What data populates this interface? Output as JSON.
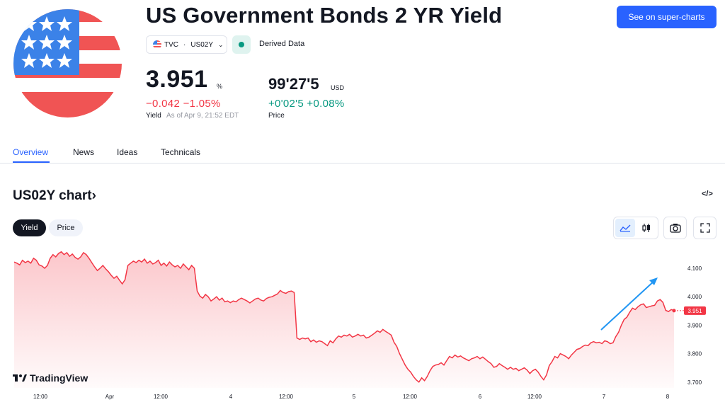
{
  "header": {
    "title": "US Government Bonds 2 YR Yield",
    "super_charts_label": "See on super-charts",
    "exchange": "TVC",
    "symbol": "US02Y",
    "derived_label": "Derived Data"
  },
  "quote": {
    "yield_value": "3.951",
    "yield_unit": "%",
    "yield_change": "−0.042 −1.05%",
    "yield_label": "Yield",
    "as_of": "As of Apr 9, 21:52 EDT",
    "price_value": "99'27'5",
    "price_unit": "USD",
    "price_change": "+0'02'5 +0.08%",
    "price_label": "Price"
  },
  "tabs": [
    {
      "label": "Overview",
      "active": true
    },
    {
      "label": "News",
      "active": false
    },
    {
      "label": "Ideas",
      "active": false
    },
    {
      "label": "Technicals",
      "active": false
    }
  ],
  "chart_section": {
    "title": "US02Y chart",
    "title_arrow": "›",
    "embed_icon_label": "</>",
    "toggle": [
      {
        "label": "Yield",
        "active": true
      },
      {
        "label": "Price",
        "active": false
      }
    ],
    "branding": "TradingView"
  },
  "colors": {
    "accent": "#2962ff",
    "line": "#f23645",
    "positive": "#089981",
    "negative": "#f23645",
    "arrow": "#2196f3"
  },
  "icons": [
    "us-flag-icon",
    "chevron-down-icon",
    "embed-code-icon",
    "area-chart-icon",
    "candles-icon",
    "camera-icon",
    "fullscreen-icon",
    "tradingview-logo-icon"
  ],
  "chart_data": {
    "type": "area",
    "x_tick_labels": [
      "12:00",
      "Apr",
      "12:00",
      "4",
      "12:00",
      "5",
      "12:00",
      "6",
      "12:00",
      "7",
      "8"
    ],
    "y_tick_labels": [
      "4.100",
      "4.000",
      "3.900",
      "3.800",
      "3.700"
    ],
    "ylim": [
      3.675,
      4.14
    ],
    "last_value": 3.951,
    "last_value_label": "3.951",
    "series": [
      {
        "values": [
          4.122,
          4.118,
          4.112,
          4.128,
          4.12,
          4.125,
          4.118,
          4.135,
          4.128,
          4.112,
          4.108,
          4.1,
          4.11,
          4.135,
          4.148,
          4.14,
          4.152,
          4.158,
          4.148,
          4.155,
          4.142,
          4.15,
          4.138,
          4.132,
          4.14,
          4.155,
          4.148,
          4.135,
          4.12,
          4.105,
          4.092,
          4.1,
          4.11,
          4.098,
          4.088,
          4.075,
          4.065,
          4.072,
          4.058,
          4.045,
          4.06,
          4.11,
          4.118,
          4.125,
          4.12,
          4.128,
          4.122,
          4.132,
          4.118,
          4.125,
          4.115,
          4.12,
          4.128,
          4.11,
          4.118,
          4.108,
          4.122,
          4.112,
          4.105,
          4.11,
          4.1,
          4.115,
          4.105,
          4.095,
          4.11,
          4.1,
          4.02,
          4.002,
          3.995,
          4.008,
          4.0,
          3.985,
          3.992,
          4.0,
          3.988,
          3.995,
          3.982,
          3.985,
          3.979,
          3.985,
          3.982,
          3.99,
          3.995,
          3.99,
          3.985,
          3.978,
          3.985,
          3.992,
          3.995,
          3.988,
          3.985,
          3.994,
          3.998,
          4.0,
          4.005,
          4.01,
          4.022,
          4.015,
          4.012,
          4.018,
          4.02,
          4.015,
          3.855,
          3.85,
          3.855,
          3.852,
          3.855,
          3.842,
          3.848,
          3.84,
          3.845,
          3.842,
          3.835,
          3.828,
          3.845,
          3.838,
          3.852,
          3.862,
          3.858,
          3.865,
          3.862,
          3.868,
          3.858,
          3.862,
          3.868,
          3.862,
          3.865,
          3.855,
          3.858,
          3.865,
          3.872,
          3.88,
          3.875,
          3.885,
          3.878,
          3.872,
          3.865,
          3.84,
          3.825,
          3.8,
          3.78,
          3.76,
          3.745,
          3.735,
          3.72,
          3.708,
          3.7,
          3.715,
          3.705,
          3.72,
          3.74,
          3.755,
          3.76,
          3.762,
          3.768,
          3.76,
          3.775,
          3.79,
          3.785,
          3.795,
          3.788,
          3.792,
          3.785,
          3.78,
          3.775,
          3.782,
          3.785,
          3.79,
          3.782,
          3.788,
          3.78,
          3.772,
          3.765,
          3.752,
          3.755,
          3.765,
          3.758,
          3.752,
          3.745,
          3.752,
          3.745,
          3.748,
          3.74,
          3.745,
          3.75,
          3.742,
          3.73,
          3.74,
          3.745,
          3.735,
          3.72,
          3.708,
          3.725,
          3.758,
          3.772,
          3.79,
          3.785,
          3.8,
          3.795,
          3.79,
          3.782,
          3.795,
          3.805,
          3.815,
          3.818,
          3.825,
          3.83,
          3.828,
          3.838,
          3.842,
          3.838,
          3.84,
          3.835,
          3.845,
          3.842,
          3.835,
          3.838,
          3.86,
          3.875,
          3.9,
          3.92,
          3.928,
          3.945,
          3.96,
          3.955,
          3.965,
          3.972,
          3.975,
          3.962,
          3.965,
          3.968,
          3.97,
          3.985,
          3.99,
          3.98,
          3.952,
          3.948,
          3.955,
          3.951
        ]
      }
    ]
  }
}
